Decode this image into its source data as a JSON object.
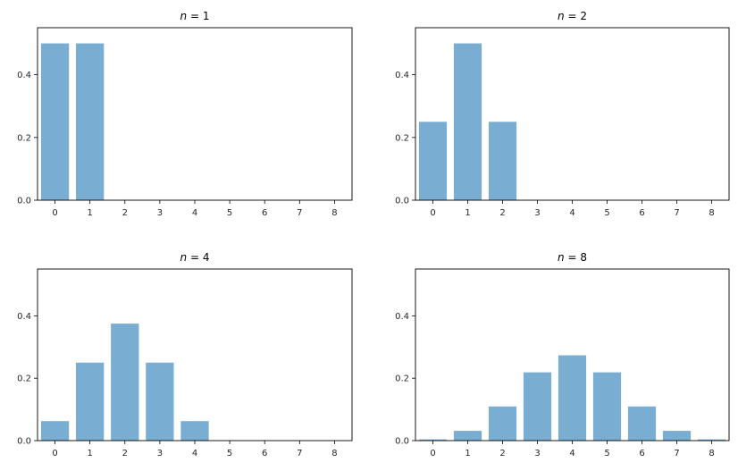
{
  "chart_data": [
    {
      "type": "bar",
      "title_var": "n",
      "title_eq": " = ",
      "title_val": "1",
      "categories": [
        0,
        1,
        2,
        3,
        4,
        5,
        6,
        7,
        8
      ],
      "values": [
        0.5,
        0.5,
        0,
        0,
        0,
        0,
        0,
        0,
        0
      ],
      "ylim": [
        0,
        0.55
      ],
      "xlim": [
        -0.5,
        8.5
      ],
      "yticks": [
        "0.0",
        "0.2",
        "0.4"
      ],
      "xticks": [
        "0",
        "1",
        "2",
        "3",
        "4",
        "5",
        "6",
        "7",
        "8"
      ]
    },
    {
      "type": "bar",
      "title_var": "n",
      "title_eq": " = ",
      "title_val": "2",
      "categories": [
        0,
        1,
        2,
        3,
        4,
        5,
        6,
        7,
        8
      ],
      "values": [
        0.25,
        0.5,
        0.25,
        0,
        0,
        0,
        0,
        0,
        0
      ],
      "ylim": [
        0,
        0.55
      ],
      "xlim": [
        -0.5,
        8.5
      ],
      "yticks": [
        "0.0",
        "0.2",
        "0.4"
      ],
      "xticks": [
        "0",
        "1",
        "2",
        "3",
        "4",
        "5",
        "6",
        "7",
        "8"
      ]
    },
    {
      "type": "bar",
      "title_var": "n",
      "title_eq": " = ",
      "title_val": "4",
      "categories": [
        0,
        1,
        2,
        3,
        4,
        5,
        6,
        7,
        8
      ],
      "values": [
        0.0625,
        0.25,
        0.375,
        0.25,
        0.0625,
        0,
        0,
        0,
        0
      ],
      "ylim": [
        0,
        0.55
      ],
      "xlim": [
        -0.5,
        8.5
      ],
      "yticks": [
        "0.0",
        "0.2",
        "0.4"
      ],
      "xticks": [
        "0",
        "1",
        "2",
        "3",
        "4",
        "5",
        "6",
        "7",
        "8"
      ]
    },
    {
      "type": "bar",
      "title_var": "n",
      "title_eq": " = ",
      "title_val": "8",
      "categories": [
        0,
        1,
        2,
        3,
        4,
        5,
        6,
        7,
        8
      ],
      "values": [
        0.0039,
        0.0313,
        0.1094,
        0.2188,
        0.2734,
        0.2188,
        0.1094,
        0.0313,
        0.0039
      ],
      "ylim": [
        0,
        0.55
      ],
      "xlim": [
        -0.5,
        8.5
      ],
      "yticks": [
        "0.0",
        "0.2",
        "0.4"
      ],
      "xticks": [
        "0",
        "1",
        "2",
        "3",
        "4",
        "5",
        "6",
        "7",
        "8"
      ]
    }
  ],
  "colors": {
    "bar": "#79add2",
    "axis": "#000000"
  }
}
